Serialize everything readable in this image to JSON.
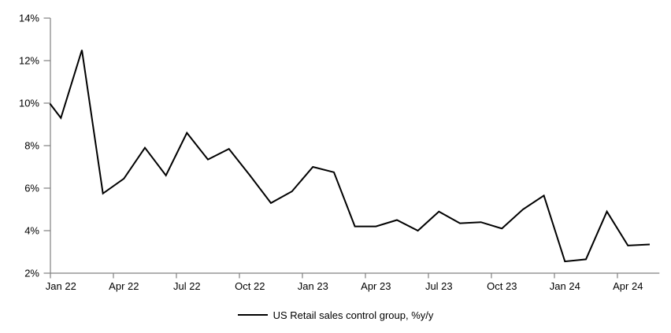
{
  "chart_data": {
    "type": "line",
    "title": "",
    "categories": [
      "Jan 22",
      "Feb 22",
      "Mar 22",
      "Apr 22",
      "May 22",
      "Jun 22",
      "Jul 22",
      "Aug 22",
      "Sep 22",
      "Oct 22",
      "Nov 22",
      "Dec 22",
      "Jan 23",
      "Feb 23",
      "Mar 23",
      "Apr 23",
      "May 23",
      "Jun 23",
      "Jul 23",
      "Aug 23",
      "Sep 23",
      "Oct 23",
      "Nov 23",
      "Dec 23",
      "Jan 24",
      "Feb 24",
      "Mar 24",
      "Apr 24",
      "May 24"
    ],
    "series": [
      {
        "name": "US Retail sales control group, %y/y",
        "values": [
          9.3,
          12.5,
          5.75,
          6.45,
          7.9,
          6.6,
          8.6,
          7.35,
          7.85,
          6.6,
          5.3,
          5.85,
          7.0,
          6.75,
          4.2,
          4.2,
          4.5,
          4.0,
          4.9,
          4.35,
          4.4,
          4.1,
          5.0,
          5.65,
          2.55,
          2.65,
          4.9,
          3.3,
          3.35
        ],
        "color": "#000000"
      }
    ],
    "edge_start_value": 9.95,
    "y_axis": {
      "min": 2,
      "max": 14,
      "tick_step": 2,
      "tick_labels": [
        "2%",
        "4%",
        "6%",
        "8%",
        "10%",
        "12%",
        "14%"
      ]
    },
    "x_axis": {
      "tick_every": 3,
      "tick_labels": [
        "Jan 22",
        "Apr 22",
        "Jul 22",
        "Oct 22",
        "Jan 23",
        "Apr 23",
        "Jul 23",
        "Oct 23",
        "Jan 24",
        "Apr 24"
      ]
    },
    "grid": false,
    "legend": {
      "position": "bottom-center",
      "label": "US Retail sales control group, %y/y"
    },
    "axis_color": "#808080",
    "text_color": "#000000",
    "background": "#ffffff"
  }
}
